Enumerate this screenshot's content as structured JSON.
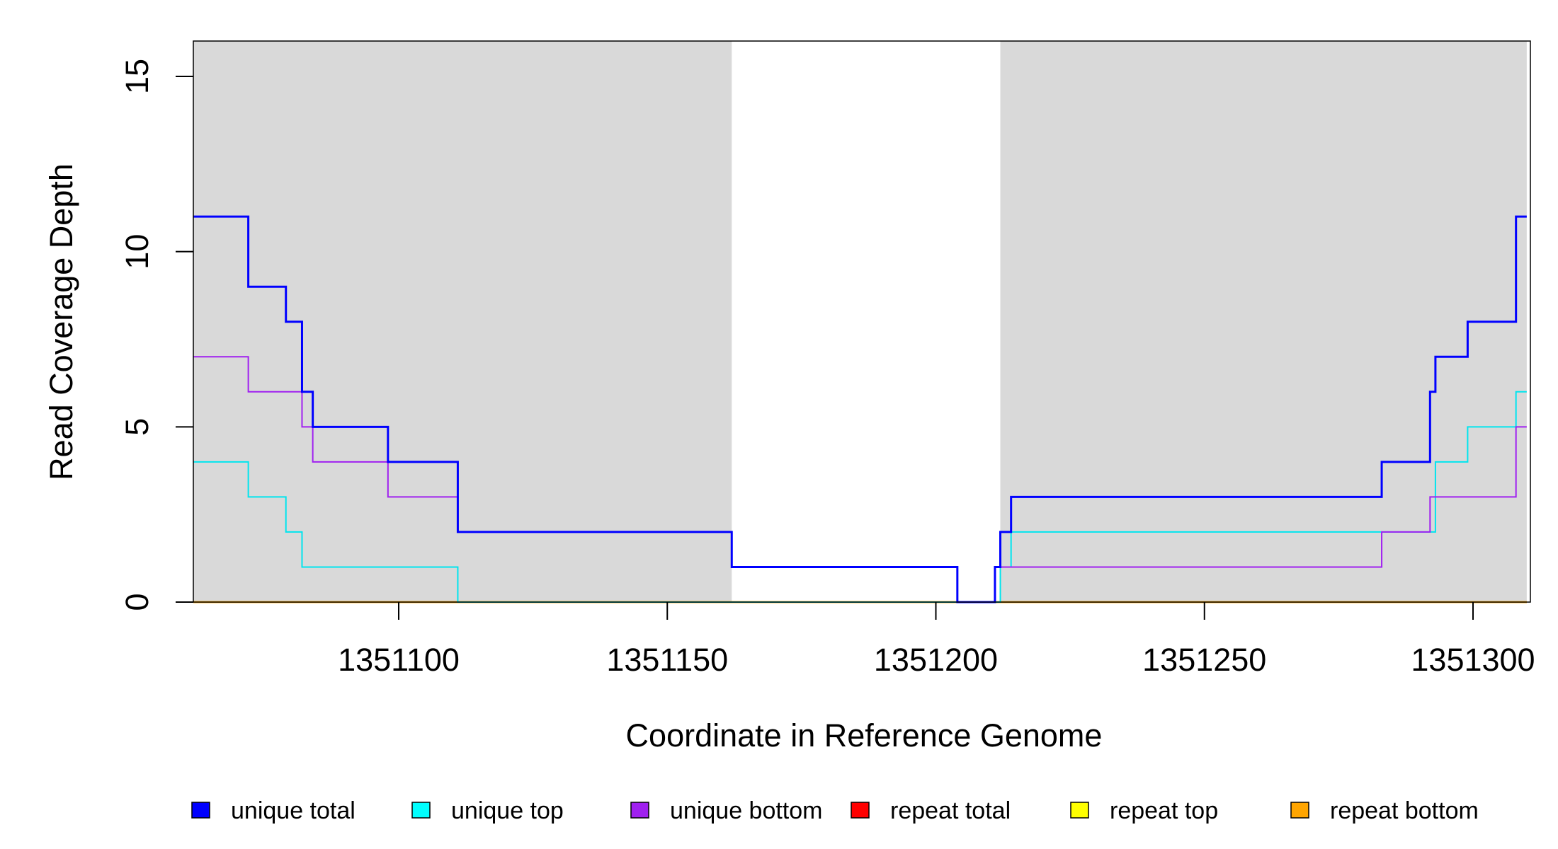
{
  "chart_data": {
    "type": "line",
    "title": "",
    "xlabel": "Coordinate in Reference Genome",
    "ylabel": "Read Coverage Depth",
    "xlim": [
      1351060,
      1351310
    ],
    "ylim": [
      0,
      16
    ],
    "x_ticks": [
      {
        "value": 1351100,
        "label": "1351100"
      },
      {
        "value": 1351150,
        "label": "1351150"
      },
      {
        "value": 1351200,
        "label": "1351200"
      },
      {
        "value": 1351250,
        "label": "1351250"
      },
      {
        "value": 1351300,
        "label": "1351300"
      }
    ],
    "y_ticks": [
      {
        "value": 0,
        "label": "0"
      },
      {
        "value": 5,
        "label": "5"
      },
      {
        "value": 10,
        "label": "10"
      },
      {
        "value": 15,
        "label": "15"
      }
    ],
    "shaded_regions": [
      {
        "x0": 1351060,
        "x1": 1351162,
        "color": "#d9d9d9"
      },
      {
        "x0": 1351212,
        "x1": 1351310,
        "color": "#d9d9d9"
      }
    ],
    "series": [
      {
        "name": "unique total",
        "color": "#0000ff",
        "x": [
          1351060,
          1351072,
          1351079,
          1351082,
          1351084,
          1351098,
          1351111,
          1351162,
          1351204,
          1351211,
          1351212,
          1351214,
          1351283,
          1351292,
          1351293,
          1351299,
          1351308,
          1351310
        ],
        "y": [
          11,
          9,
          8,
          6,
          5,
          4,
          2,
          1,
          0,
          1,
          2,
          3,
          4,
          6,
          7,
          8,
          11,
          11
        ]
      },
      {
        "name": "unique top",
        "color": "#00e5ee",
        "x": [
          1351060,
          1351072,
          1351079,
          1351082,
          1351111,
          1351212,
          1351214,
          1351283,
          1351293,
          1351299,
          1351308,
          1351310
        ],
        "y": [
          4,
          3,
          2,
          1,
          0,
          1,
          2,
          2,
          4,
          5,
          6,
          6
        ]
      },
      {
        "name": "unique bottom",
        "color": "#a020f0",
        "x": [
          1351060,
          1351072,
          1351082,
          1351084,
          1351098,
          1351111,
          1351162,
          1351204,
          1351211,
          1351283,
          1351292,
          1351308,
          1351310
        ],
        "y": [
          7,
          6,
          5,
          4,
          3,
          2,
          1,
          0,
          1,
          2,
          3,
          5,
          5
        ]
      },
      {
        "name": "repeat total",
        "color": "#ff0000",
        "x": [
          1351060,
          1351310
        ],
        "y": [
          0,
          0
        ]
      },
      {
        "name": "repeat top",
        "color": "#ffff00",
        "x": [
          1351060,
          1351310
        ],
        "y": [
          0,
          0
        ]
      },
      {
        "name": "repeat bottom",
        "color": "#ffa500",
        "x": [
          1351060,
          1351310
        ],
        "y": [
          0,
          0
        ]
      }
    ],
    "legend": {
      "placement": "bottom",
      "items": [
        {
          "label": "unique total",
          "color": "#0000ff"
        },
        {
          "label": "unique top",
          "color": "#00ffff"
        },
        {
          "label": "unique bottom",
          "color": "#a020f0"
        },
        {
          "label": "repeat total",
          "color": "#ff0000"
        },
        {
          "label": "repeat top",
          "color": "#ffff00"
        },
        {
          "label": "repeat bottom",
          "color": "#ffa500"
        }
      ]
    }
  }
}
